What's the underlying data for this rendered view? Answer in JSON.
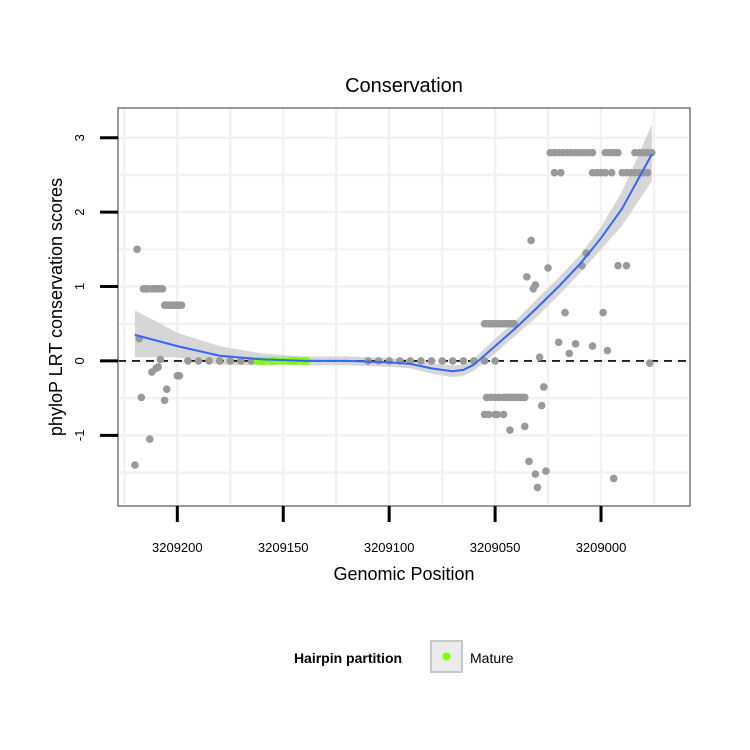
{
  "chart_data": {
    "type": "scatter",
    "title": "Conservation",
    "xlabel": "Genomic Position",
    "ylabel": "phyloP LRT conservation scores",
    "x_reversed": true,
    "xlim": [
      3209228,
      3208958
    ],
    "ylim": [
      -1.95,
      3.4
    ],
    "x_ticks": [
      3209200,
      3209150,
      3209100,
      3209050,
      3209000
    ],
    "x_tick_labels": [
      "3209200",
      "3209150",
      "3209100",
      "3209050",
      "3209000"
    ],
    "y_ticks": [
      -1,
      0,
      1,
      2,
      3
    ],
    "y_tick_labels": [
      "-1",
      "0",
      "1",
      "2",
      "3"
    ],
    "reference_line": {
      "y": 0,
      "style": "dashed"
    },
    "legend": {
      "title": "Hairpin partition",
      "entries": [
        {
          "label": "Mature",
          "color": "#7fff00"
        }
      ],
      "position": "bottom"
    },
    "colors": {
      "points": "#999999",
      "mature": "#7fff00",
      "smooth": "#3366ff",
      "band": "#cccccc"
    },
    "points": [
      {
        "x": 3209220,
        "y": -1.4
      },
      {
        "x": 3209219,
        "y": 1.5
      },
      {
        "x": 3209218,
        "y": 0.3
      },
      {
        "x": 3209217,
        "y": -0.49
      },
      {
        "x": 3209216,
        "y": 0.97
      },
      {
        "x": 3209215,
        "y": 0.97
      },
      {
        "x": 3209214,
        "y": 0.97
      },
      {
        "x": 3209213,
        "y": -1.05
      },
      {
        "x": 3209212,
        "y": -0.15
      },
      {
        "x": 3209212,
        "y": 0.97
      },
      {
        "x": 3209211,
        "y": 0.97
      },
      {
        "x": 3209210,
        "y": -0.1
      },
      {
        "x": 3209210,
        "y": 0.97
      },
      {
        "x": 3209209,
        "y": -0.08
      },
      {
        "x": 3209209,
        "y": 0.97
      },
      {
        "x": 3209208,
        "y": 0.02
      },
      {
        "x": 3209208,
        "y": 0.97
      },
      {
        "x": 3209207,
        "y": 0.97
      },
      {
        "x": 3209206,
        "y": 0.75
      },
      {
        "x": 3209206,
        "y": -0.53
      },
      {
        "x": 3209205,
        "y": 0.75
      },
      {
        "x": 3209205,
        "y": -0.38
      },
      {
        "x": 3209204,
        "y": 0.75
      },
      {
        "x": 3209203,
        "y": 0.75
      },
      {
        "x": 3209202,
        "y": 0.75
      },
      {
        "x": 3209201,
        "y": 0.75
      },
      {
        "x": 3209200,
        "y": 0.75
      },
      {
        "x": 3209200,
        "y": -0.2
      },
      {
        "x": 3209199,
        "y": -0.2
      },
      {
        "x": 3209199,
        "y": 0.75
      },
      {
        "x": 3209198,
        "y": 0.75
      },
      {
        "x": 3209195,
        "y": 0.0
      },
      {
        "x": 3209190,
        "y": 0.0
      },
      {
        "x": 3209185,
        "y": 0.0
      },
      {
        "x": 3209180,
        "y": 0.0
      },
      {
        "x": 3209175,
        "y": 0.0
      },
      {
        "x": 3209170,
        "y": 0.0
      },
      {
        "x": 3209165,
        "y": 0.0
      },
      {
        "x": 3209160,
        "y": 0.0
      },
      {
        "x": 3209155,
        "y": 0.0
      },
      {
        "x": 3209150,
        "y": 0.0
      },
      {
        "x": 3209145,
        "y": 0.0
      },
      {
        "x": 3209140,
        "y": 0.0
      },
      {
        "x": 3209110,
        "y": 0.0
      },
      {
        "x": 3209105,
        "y": 0.0
      },
      {
        "x": 3209100,
        "y": 0.0
      },
      {
        "x": 3209095,
        "y": 0.0
      },
      {
        "x": 3209090,
        "y": 0.0
      },
      {
        "x": 3209085,
        "y": 0.0
      },
      {
        "x": 3209080,
        "y": 0.0
      },
      {
        "x": 3209075,
        "y": 0.0
      },
      {
        "x": 3209070,
        "y": 0.0
      },
      {
        "x": 3209065,
        "y": 0.0
      },
      {
        "x": 3209060,
        "y": 0.0
      },
      {
        "x": 3209055,
        "y": 0.0
      },
      {
        "x": 3209050,
        "y": 0.0
      },
      {
        "x": 3209055,
        "y": 0.5
      },
      {
        "x": 3209054,
        "y": 0.5
      },
      {
        "x": 3209053,
        "y": 0.5
      },
      {
        "x": 3209052,
        "y": 0.5
      },
      {
        "x": 3209051,
        "y": 0.5
      },
      {
        "x": 3209050,
        "y": 0.5
      },
      {
        "x": 3209049,
        "y": 0.5
      },
      {
        "x": 3209048,
        "y": 0.5
      },
      {
        "x": 3209047,
        "y": 0.5
      },
      {
        "x": 3209046,
        "y": 0.5
      },
      {
        "x": 3209045,
        "y": 0.5
      },
      {
        "x": 3209044,
        "y": 0.5
      },
      {
        "x": 3209043,
        "y": 0.5
      },
      {
        "x": 3209042,
        "y": 0.5
      },
      {
        "x": 3209041,
        "y": 0.5
      },
      {
        "x": 3209054,
        "y": -0.49
      },
      {
        "x": 3209052,
        "y": -0.49
      },
      {
        "x": 3209050,
        "y": -0.49
      },
      {
        "x": 3209048,
        "y": -0.49
      },
      {
        "x": 3209046,
        "y": -0.49
      },
      {
        "x": 3209045,
        "y": -0.49
      },
      {
        "x": 3209044,
        "y": -0.49
      },
      {
        "x": 3209043,
        "y": -0.49
      },
      {
        "x": 3209042,
        "y": -0.49
      },
      {
        "x": 3209041,
        "y": -0.49
      },
      {
        "x": 3209040,
        "y": -0.49
      },
      {
        "x": 3209039,
        "y": -0.49
      },
      {
        "x": 3209038,
        "y": -0.49
      },
      {
        "x": 3209037,
        "y": -0.49
      },
      {
        "x": 3209036,
        "y": -0.49
      },
      {
        "x": 3209055,
        "y": -0.72
      },
      {
        "x": 3209053,
        "y": -0.72
      },
      {
        "x": 3209050,
        "y": -0.72
      },
      {
        "x": 3209049,
        "y": -0.72
      },
      {
        "x": 3209046,
        "y": -0.72
      },
      {
        "x": 3209043,
        "y": -0.93
      },
      {
        "x": 3209036,
        "y": -0.88
      },
      {
        "x": 3209034,
        "y": -1.35
      },
      {
        "x": 3209031,
        "y": -1.52
      },
      {
        "x": 3209030,
        "y": -1.7
      },
      {
        "x": 3209028,
        "y": -0.6
      },
      {
        "x": 3209027,
        "y": -0.35
      },
      {
        "x": 3209026,
        "y": -1.48
      },
      {
        "x": 3209029,
        "y": 0.05
      },
      {
        "x": 3209035,
        "y": 1.13
      },
      {
        "x": 3209033,
        "y": 1.62
      },
      {
        "x": 3209032,
        "y": 0.97
      },
      {
        "x": 3209031,
        "y": 1.02
      },
      {
        "x": 3209025,
        "y": 1.25
      },
      {
        "x": 3209020,
        "y": 0.25
      },
      {
        "x": 3209017,
        "y": 0.65
      },
      {
        "x": 3209015,
        "y": 0.1
      },
      {
        "x": 3209012,
        "y": 0.23
      },
      {
        "x": 3209009,
        "y": 1.28
      },
      {
        "x": 3209007,
        "y": 1.45
      },
      {
        "x": 3209004,
        "y": 0.2
      },
      {
        "x": 3208999,
        "y": 0.65
      },
      {
        "x": 3208997,
        "y": 0.14
      },
      {
        "x": 3208994,
        "y": -1.58
      },
      {
        "x": 3208992,
        "y": 1.28
      },
      {
        "x": 3208988,
        "y": 1.28
      },
      {
        "x": 3208977,
        "y": -0.03
      },
      {
        "x": 3209024,
        "y": 2.8
      },
      {
        "x": 3209022,
        "y": 2.8
      },
      {
        "x": 3209020,
        "y": 2.8
      },
      {
        "x": 3209018,
        "y": 2.8
      },
      {
        "x": 3209016,
        "y": 2.8
      },
      {
        "x": 3209014,
        "y": 2.8
      },
      {
        "x": 3209012,
        "y": 2.8
      },
      {
        "x": 3209010,
        "y": 2.8
      },
      {
        "x": 3209008,
        "y": 2.8
      },
      {
        "x": 3209006,
        "y": 2.8
      },
      {
        "x": 3209004,
        "y": 2.8
      },
      {
        "x": 3208998,
        "y": 2.8
      },
      {
        "x": 3208996,
        "y": 2.8
      },
      {
        "x": 3208994,
        "y": 2.8
      },
      {
        "x": 3208992,
        "y": 2.8
      },
      {
        "x": 3208984,
        "y": 2.8
      },
      {
        "x": 3208982,
        "y": 2.8
      },
      {
        "x": 3208980,
        "y": 2.8
      },
      {
        "x": 3208978,
        "y": 2.8
      },
      {
        "x": 3208976,
        "y": 2.8
      },
      {
        "x": 3209022,
        "y": 2.53
      },
      {
        "x": 3209019,
        "y": 2.53
      },
      {
        "x": 3209004,
        "y": 2.53
      },
      {
        "x": 3209002,
        "y": 2.53
      },
      {
        "x": 3209000,
        "y": 2.53
      },
      {
        "x": 3208998,
        "y": 2.53
      },
      {
        "x": 3208995,
        "y": 2.53
      },
      {
        "x": 3208990,
        "y": 2.53
      },
      {
        "x": 3208988,
        "y": 2.53
      },
      {
        "x": 3208986,
        "y": 2.53
      },
      {
        "x": 3208984,
        "y": 2.53
      },
      {
        "x": 3208982,
        "y": 2.53
      },
      {
        "x": 3208980,
        "y": 2.53
      },
      {
        "x": 3208978,
        "y": 2.53
      }
    ],
    "mature_points": [
      {
        "x": 3209162,
        "y": 0.0
      },
      {
        "x": 3209159,
        "y": 0.0
      },
      {
        "x": 3209156,
        "y": 0.0
      },
      {
        "x": 3209153,
        "y": 0.0
      },
      {
        "x": 3209150,
        "y": 0.0
      },
      {
        "x": 3209147,
        "y": 0.0
      },
      {
        "x": 3209144,
        "y": 0.0
      },
      {
        "x": 3209141,
        "y": 0.0
      },
      {
        "x": 3209139,
        "y": 0.0
      }
    ],
    "smooth": {
      "x": [
        3209220,
        3209200,
        3209180,
        3209160,
        3209140,
        3209120,
        3209100,
        3209090,
        3209080,
        3209070,
        3209065,
        3209060,
        3209050,
        3209040,
        3209030,
        3209020,
        3209010,
        3209000,
        3208990,
        3208976
      ],
      "y": [
        0.35,
        0.2,
        0.07,
        0.02,
        0.0,
        0.0,
        -0.02,
        -0.04,
        -0.1,
        -0.14,
        -0.12,
        -0.05,
        0.2,
        0.45,
        0.72,
        1.0,
        1.3,
        1.65,
        2.05,
        2.78
      ],
      "lower": [
        0.05,
        0.05,
        -0.05,
        -0.06,
        -0.06,
        -0.06,
        -0.08,
        -0.1,
        -0.17,
        -0.22,
        -0.2,
        -0.13,
        0.1,
        0.35,
        0.6,
        0.88,
        1.18,
        1.5,
        1.82,
        2.42
      ],
      "upper": [
        0.68,
        0.38,
        0.2,
        0.1,
        0.06,
        0.06,
        0.04,
        0.02,
        -0.03,
        -0.06,
        -0.05,
        0.03,
        0.3,
        0.55,
        0.84,
        1.12,
        1.42,
        1.8,
        2.28,
        3.18
      ]
    }
  }
}
